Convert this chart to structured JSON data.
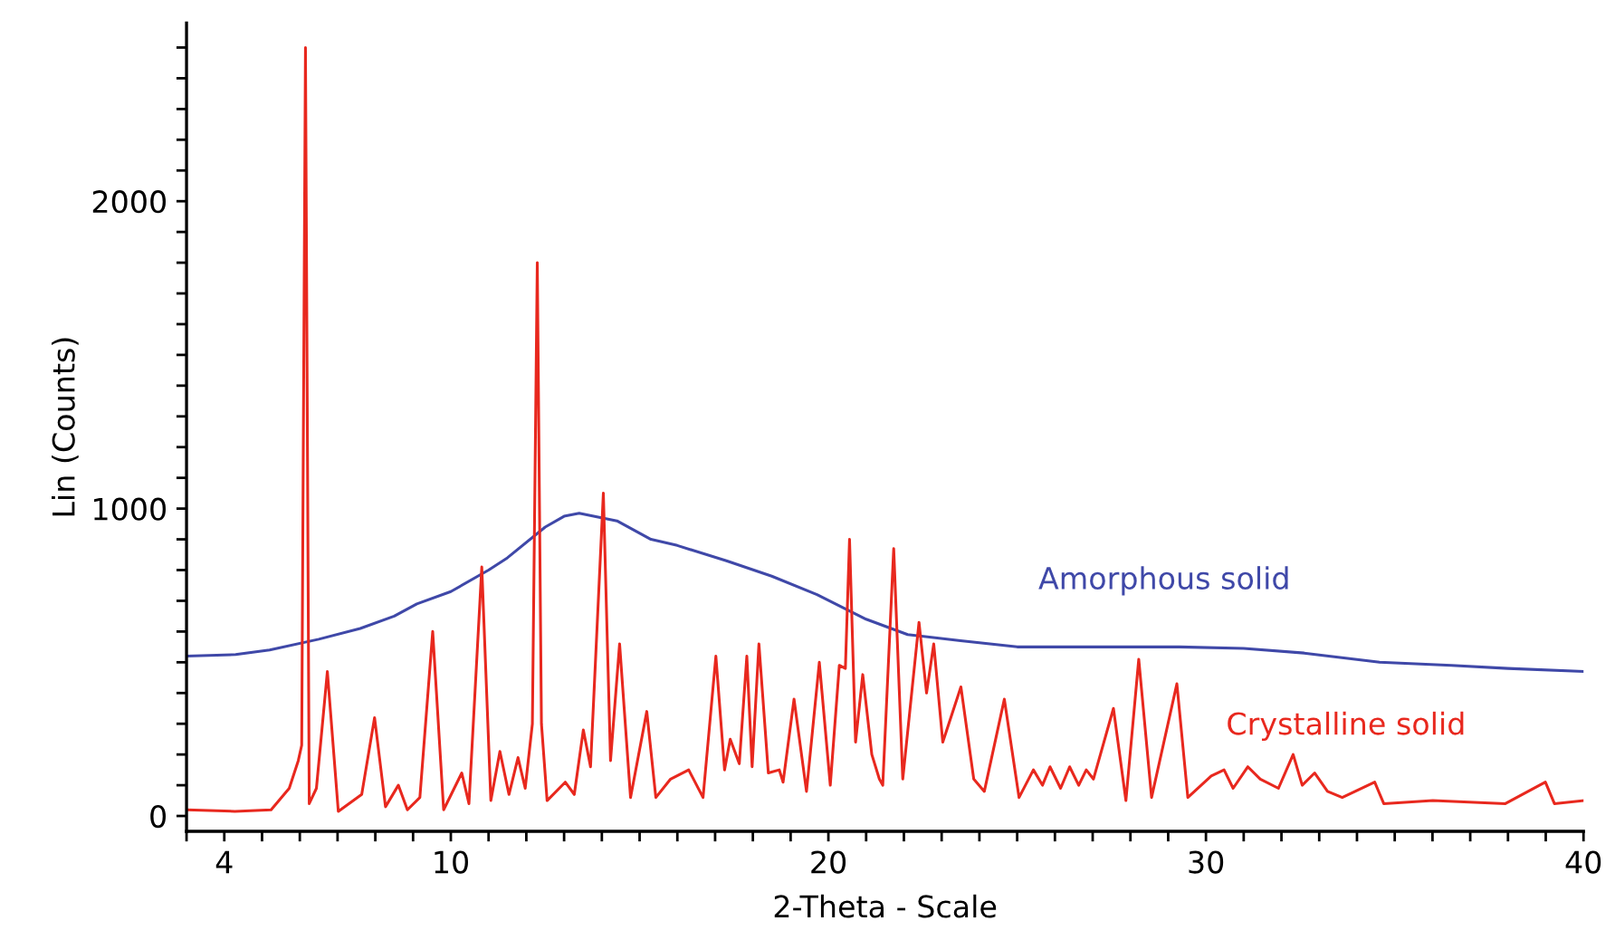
{
  "chart_data": {
    "type": "line",
    "xlabel": "2-Theta - Scale",
    "ylabel": "Lin (Counts)",
    "xlim": [
      3,
      40
    ],
    "ylim": [
      -50,
      2580
    ],
    "xticks": [
      {
        "value": 3,
        "label": null
      },
      4,
      {
        "value": 5,
        "label": null
      },
      {
        "value": 6,
        "label": null
      },
      {
        "value": 7,
        "label": null
      },
      {
        "value": 8,
        "label": null
      },
      {
        "value": 9,
        "label": null
      },
      10,
      {
        "value": 11,
        "label": null
      },
      {
        "value": 12,
        "label": null
      },
      {
        "value": 13,
        "label": null
      },
      {
        "value": 14,
        "label": null
      },
      {
        "value": 15,
        "label": null
      },
      {
        "value": 16,
        "label": null
      },
      {
        "value": 17,
        "label": null
      },
      {
        "value": 18,
        "label": null
      },
      {
        "value": 19,
        "label": null
      },
      20,
      {
        "value": 21,
        "label": null
      },
      {
        "value": 22,
        "label": null
      },
      {
        "value": 23,
        "label": null
      },
      {
        "value": 24,
        "label": null
      },
      {
        "value": 25,
        "label": null
      },
      {
        "value": 26,
        "label": null
      },
      {
        "value": 27,
        "label": null
      },
      {
        "value": 28,
        "label": null
      },
      {
        "value": 29,
        "label": null
      },
      30,
      {
        "value": 31,
        "label": null
      },
      {
        "value": 32,
        "label": null
      },
      {
        "value": 33,
        "label": null
      },
      {
        "value": 34,
        "label": null
      },
      {
        "value": 35,
        "label": null
      },
      {
        "value": 36,
        "label": null
      },
      {
        "value": 37,
        "label": null
      },
      {
        "value": 38,
        "label": null
      },
      {
        "value": 39,
        "label": null
      },
      40
    ],
    "yticks": [
      0,
      {
        "value": 100,
        "label": null
      },
      {
        "value": 200,
        "label": null
      },
      {
        "value": 300,
        "label": null
      },
      {
        "value": 400,
        "label": null
      },
      {
        "value": 500,
        "label": null
      },
      {
        "value": 600,
        "label": null
      },
      {
        "value": 700,
        "label": null
      },
      {
        "value": 800,
        "label": null
      },
      {
        "value": 900,
        "label": null
      },
      1000,
      {
        "value": 1100,
        "label": null
      },
      {
        "value": 1200,
        "label": null
      },
      {
        "value": 1300,
        "label": null
      },
      {
        "value": 1400,
        "label": null
      },
      {
        "value": 1500,
        "label": null
      },
      {
        "value": 1600,
        "label": null
      },
      {
        "value": 1700,
        "label": null
      },
      {
        "value": 1800,
        "label": null
      },
      {
        "value": 1900,
        "label": null
      },
      2000,
      {
        "value": 2100,
        "label": null
      },
      {
        "value": 2200,
        "label": null
      },
      {
        "value": 2300,
        "label": null
      },
      {
        "value": 2400,
        "label": null
      },
      {
        "value": 2500,
        "label": null
      }
    ],
    "grid": false,
    "legend": false,
    "marker": "none",
    "line_style": "solid",
    "series": [
      {
        "name": "Amorphous solid",
        "color": "#3f48a8",
        "x": [
          3,
          4.3,
          5.2,
          6.5,
          7.6,
          8.5,
          9.1,
          10,
          11,
          11.5,
          12.5,
          13,
          13.4,
          14.4,
          15.3,
          16,
          17.3,
          18.5,
          19.7,
          21,
          22.1,
          23.5,
          25,
          27,
          29.3,
          31,
          32.6,
          34.6,
          36.5,
          38,
          40
        ],
        "values": [
          520,
          525,
          540,
          575,
          610,
          650,
          690,
          730,
          800,
          840,
          940,
          975,
          985,
          960,
          900,
          880,
          830,
          780,
          720,
          640,
          590,
          570,
          550,
          550,
          550,
          545,
          530,
          500,
          490,
          480,
          470
        ]
      },
      {
        "name": "Crystalline solid",
        "color": "#e8281e",
        "x": [
          3,
          4.28,
          5.24,
          5.72,
          5.96,
          6.05,
          6.15,
          6.25,
          6.44,
          6.73,
          7.02,
          7.64,
          7.98,
          8.27,
          8.61,
          8.85,
          9.18,
          9.52,
          9.81,
          10.29,
          10.48,
          10.82,
          11.06,
          11.3,
          11.54,
          11.78,
          11.97,
          12.16,
          12.29,
          12.4,
          12.55,
          13.03,
          13.27,
          13.51,
          13.7,
          14.04,
          14.23,
          14.47,
          14.76,
          15.19,
          15.43,
          15.82,
          16.3,
          16.68,
          17.02,
          17.25,
          17.4,
          17.64,
          17.84,
          17.98,
          18.16,
          18.41,
          18.7,
          18.8,
          19.09,
          19.42,
          19.76,
          20.05,
          20.29,
          20.45,
          20.56,
          20.72,
          20.91,
          21.15,
          21.35,
          21.44,
          21.73,
          21.97,
          22.4,
          22.6,
          22.79,
          23.03,
          23.51,
          23.85,
          24.13,
          24.66,
          25.05,
          25.43,
          25.67,
          25.87,
          26.15,
          26.39,
          26.63,
          26.83,
          27.02,
          27.55,
          27.88,
          28.22,
          28.56,
          29.23,
          29.52,
          30.14,
          30.48,
          30.72,
          31.11,
          31.44,
          31.92,
          32.31,
          32.55,
          32.88,
          33.22,
          33.61,
          34.47,
          34.71,
          36.01,
          37.93,
          38.99,
          39.23,
          40
        ],
        "values": [
          20,
          15,
          20,
          90,
          180,
          230,
          2500,
          40,
          90,
          470,
          15,
          70,
          320,
          30,
          100,
          20,
          60,
          600,
          20,
          140,
          40,
          810,
          50,
          210,
          70,
          190,
          90,
          300,
          1800,
          300,
          50,
          110,
          70,
          280,
          160,
          1050,
          180,
          560,
          60,
          340,
          60,
          120,
          150,
          60,
          520,
          150,
          250,
          170,
          520,
          160,
          560,
          140,
          150,
          110,
          380,
          80,
          500,
          100,
          490,
          480,
          900,
          240,
          460,
          200,
          120,
          100,
          870,
          120,
          630,
          400,
          560,
          240,
          420,
          120,
          80,
          380,
          60,
          150,
          100,
          160,
          90,
          160,
          100,
          150,
          120,
          350,
          50,
          510,
          60,
          430,
          60,
          130,
          150,
          90,
          160,
          120,
          90,
          200,
          100,
          140,
          80,
          60,
          110,
          40,
          50,
          40,
          110,
          40,
          50
        ]
      }
    ]
  }
}
